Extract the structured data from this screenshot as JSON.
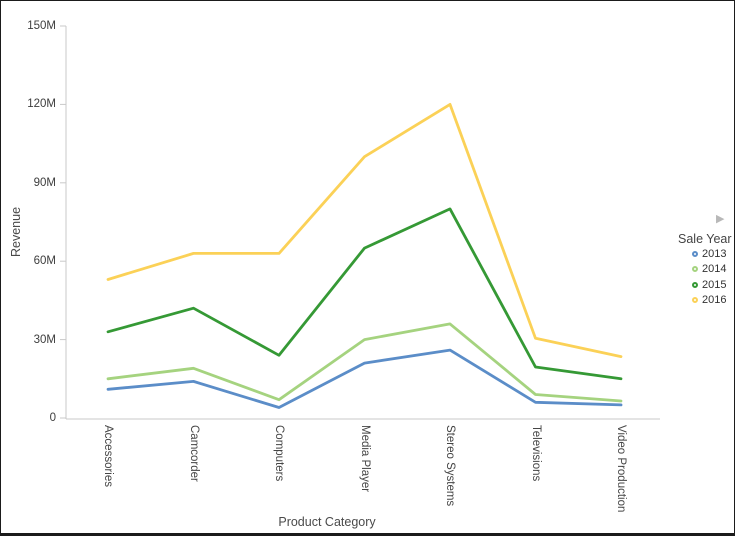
{
  "window": {
    "background": "#ffffff",
    "border_color": "#1b1b1b"
  },
  "chart_data": {
    "type": "line",
    "title": "",
    "xlabel": "Product Category",
    "ylabel": "Revenue",
    "values_unit": "millions",
    "categories": [
      "Accessories",
      "Camcorder",
      "Computers",
      "Media Player",
      "Stereo Systems",
      "Televisions",
      "Video Production"
    ],
    "series": [
      {
        "name": "2013",
        "color": "#5b8dc8",
        "values": [
          11,
          14,
          4,
          21,
          26,
          6,
          5
        ]
      },
      {
        "name": "2014",
        "color": "#a5d37f",
        "values": [
          15,
          19,
          7,
          30,
          36,
          9,
          6.5
        ]
      },
      {
        "name": "2015",
        "color": "#359935",
        "values": [
          33,
          42,
          24,
          65,
          80,
          19.5,
          15
        ]
      },
      {
        "name": "2016",
        "color": "#fbd157",
        "values": [
          53,
          63,
          63,
          100,
          120,
          30.5,
          23.5
        ]
      }
    ],
    "ylim_m": [
      0,
      150
    ],
    "ytick_values_m": [
      0,
      30,
      60,
      90,
      120,
      150
    ],
    "ytick_labels": [
      "0",
      "30M",
      "60M",
      "90M",
      "120M",
      "150M"
    ],
    "grid": false,
    "legend_position": "right",
    "axis_color": "#c9c9c9"
  },
  "legend": {
    "title": "Sale Year",
    "scroll_icon": "▶"
  }
}
